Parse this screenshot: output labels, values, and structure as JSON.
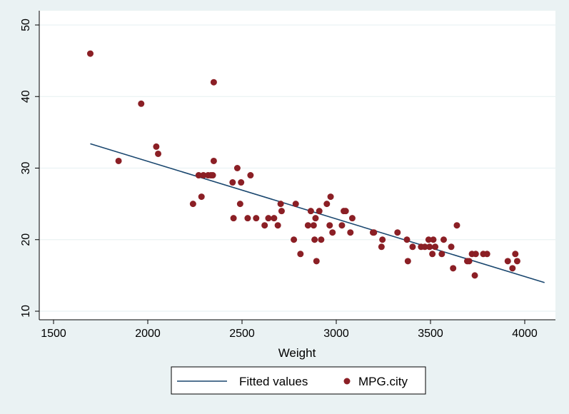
{
  "chart_data": {
    "type": "scatter",
    "xlabel": "Weight",
    "ylabel": "",
    "xlim": [
      1500,
      4100
    ],
    "ylim": [
      10,
      50
    ],
    "x_ticks": [
      1500,
      2000,
      2500,
      3000,
      3500,
      4000
    ],
    "y_ticks": [
      10,
      20,
      30,
      40,
      50
    ],
    "grid": "horizontal",
    "legend_position": "bottom",
    "colors": {
      "background": "#eaf2f3",
      "plot_area": "#ffffff",
      "gridline": "#eaf2f3",
      "points": "#8b1f25",
      "fit_line": "#1a476f"
    },
    "legend": [
      {
        "label": "Fitted values",
        "kind": "line"
      },
      {
        "label": "MPG.city",
        "kind": "marker"
      }
    ],
    "fitted": {
      "name": "Fitted values",
      "x": [
        1695,
        4105
      ],
      "y": [
        33.4,
        14.0
      ]
    },
    "series": [
      {
        "name": "MPG.city",
        "points": [
          [
            1695,
            46
          ],
          [
            1845,
            31
          ],
          [
            1965,
            39
          ],
          [
            2045,
            33
          ],
          [
            2055,
            32
          ],
          [
            2240,
            25
          ],
          [
            2270,
            29
          ],
          [
            2285,
            26
          ],
          [
            2295,
            29
          ],
          [
            2320,
            29
          ],
          [
            2335,
            29
          ],
          [
            2345,
            29
          ],
          [
            2350,
            31
          ],
          [
            2350,
            42
          ],
          [
            2450,
            28
          ],
          [
            2455,
            23
          ],
          [
            2475,
            30
          ],
          [
            2490,
            25
          ],
          [
            2495,
            28
          ],
          [
            2530,
            23
          ],
          [
            2545,
            29
          ],
          [
            2575,
            23
          ],
          [
            2620,
            22
          ],
          [
            2640,
            23
          ],
          [
            2670,
            23
          ],
          [
            2690,
            22
          ],
          [
            2705,
            25
          ],
          [
            2710,
            24
          ],
          [
            2775,
            20
          ],
          [
            2785,
            25
          ],
          [
            2810,
            18
          ],
          [
            2850,
            22
          ],
          [
            2865,
            24
          ],
          [
            2880,
            22
          ],
          [
            2885,
            20
          ],
          [
            2890,
            23
          ],
          [
            2895,
            17
          ],
          [
            2910,
            24
          ],
          [
            2920,
            20
          ],
          [
            2950,
            25
          ],
          [
            2965,
            22
          ],
          [
            2970,
            26
          ],
          [
            2980,
            21
          ],
          [
            3030,
            22
          ],
          [
            3040,
            24
          ],
          [
            3050,
            24
          ],
          [
            3075,
            21
          ],
          [
            3085,
            23
          ],
          [
            3195,
            21
          ],
          [
            3200,
            21
          ],
          [
            3240,
            19
          ],
          [
            3245,
            20
          ],
          [
            3325,
            21
          ],
          [
            3375,
            20
          ],
          [
            3380,
            17
          ],
          [
            3405,
            19
          ],
          [
            3450,
            19
          ],
          [
            3470,
            19
          ],
          [
            3490,
            20
          ],
          [
            3495,
            19
          ],
          [
            3510,
            18
          ],
          [
            3515,
            20
          ],
          [
            3525,
            19
          ],
          [
            3560,
            18
          ],
          [
            3570,
            20
          ],
          [
            3610,
            19
          ],
          [
            3620,
            16
          ],
          [
            3640,
            22
          ],
          [
            3695,
            17
          ],
          [
            3705,
            17
          ],
          [
            3720,
            18
          ],
          [
            3735,
            15
          ],
          [
            3740,
            18
          ],
          [
            3780,
            18
          ],
          [
            3800,
            18
          ],
          [
            3910,
            17
          ],
          [
            3935,
            16
          ],
          [
            3950,
            18
          ],
          [
            3960,
            17
          ]
        ]
      }
    ]
  }
}
